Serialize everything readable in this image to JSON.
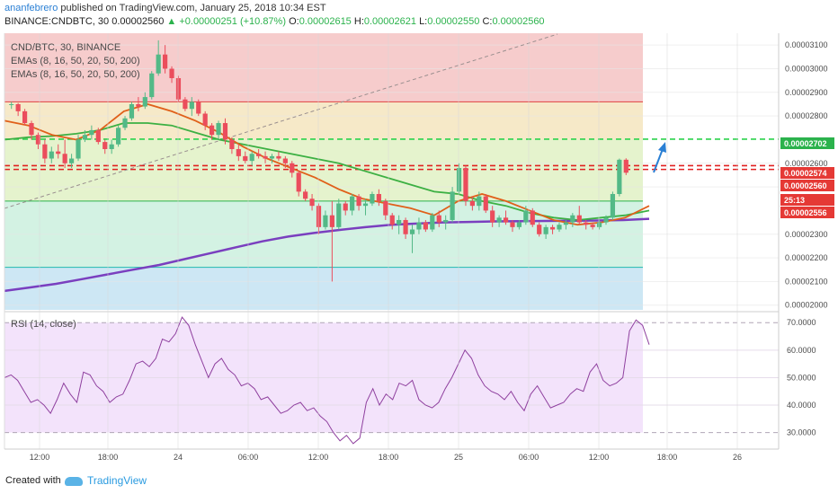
{
  "header": {
    "author": "ananfebrero",
    "published": "published on TradingView.com, January 25, 2018 10:34 EST",
    "symbol": "BINANCE:CNDBTC, 30",
    "last": "0.00002560",
    "change": "+0.00000251 (+10.87%)",
    "o_label": "O:",
    "o": "0.00002615",
    "h_label": "H:",
    "h": "0.00002621",
    "l_label": "L:",
    "l": "0.00002550",
    "c_label": "C:",
    "c": "0.00002560"
  },
  "legend": {
    "title": "CND/BTC, 30, BINANCE",
    "ema1": "EMAs (8, 16, 50, 20, 50, 200)",
    "ema2": "EMAs (8, 16, 50, 20, 50, 200)",
    "rsi": "RSI (14, close)"
  },
  "price_tags": [
    {
      "value": "0.00002702",
      "color": "#2bb24c"
    },
    {
      "value": "0.00002574",
      "color": "#e53935"
    },
    {
      "value": "0.00002560",
      "color": "#e53935"
    },
    {
      "value": "25:13",
      "color": "#e53935"
    },
    {
      "value": "0.00002556",
      "color": "#e53935"
    }
  ],
  "footer": {
    "created": "Created with",
    "brand": "TradingView"
  },
  "chart_data": [
    {
      "type": "candlestick",
      "title": "CND/BTC, 30, BINANCE",
      "ylim": [
        1.98e-05,
        3.15e-05
      ],
      "y_ticks": [
        "0.00003100",
        "0.00003000",
        "0.00002900",
        "0.00002800",
        "0.00002600",
        "0.00002500",
        "0.00002300",
        "0.00002200",
        "0.00002100",
        "0.00002000"
      ],
      "x_ticks": [
        "12:00",
        "18:00",
        "24",
        "06:00",
        "12:00",
        "18:00",
        "25",
        "06:00",
        "12:00",
        "18:00",
        "26"
      ],
      "zones": [
        {
          "from": 2.86e-05,
          "to": 3.15e-05,
          "color": "#f6cccc"
        },
        {
          "from": 2.7e-05,
          "to": 2.86e-05,
          "color": "#f6e9c8"
        },
        {
          "from": 2.44e-05,
          "to": 2.7e-05,
          "color": "#e5f3cd"
        },
        {
          "from": 2.16e-05,
          "to": 2.44e-05,
          "color": "#d3f2e3"
        },
        {
          "from": 1.98e-05,
          "to": 2.16e-05,
          "color": "#cde7f4"
        }
      ],
      "levels": [
        {
          "value": 2.86e-05,
          "style": "solid",
          "color": "#e04040"
        },
        {
          "value": 2.702e-05,
          "style": "dashed",
          "color": "#2bd24c"
        },
        {
          "value": 2.59e-05,
          "style": "dashed",
          "color": "#e02020"
        },
        {
          "value": 2.574e-05,
          "style": "dashed",
          "color": "#e02020"
        },
        {
          "value": 2.44e-05,
          "style": "solid",
          "color": "#2bb24c"
        },
        {
          "value": 2.16e-05,
          "style": "solid",
          "color": "#22b8b0"
        }
      ],
      "candles": [
        [
          2850,
          2860,
          2830,
          2850
        ],
        [
          2850,
          2855,
          2800,
          2820
        ],
        [
          2820,
          2830,
          2760,
          2770
        ],
        [
          2770,
          2780,
          2700,
          2720
        ],
        [
          2720,
          2730,
          2660,
          2680
        ],
        [
          2680,
          2700,
          2600,
          2620
        ],
        [
          2620,
          2670,
          2600,
          2650
        ],
        [
          2650,
          2680,
          2620,
          2640
        ],
        [
          2640,
          2700,
          2580,
          2600
        ],
        [
          2600,
          2640,
          2580,
          2620
        ],
        [
          2620,
          2720,
          2610,
          2700
        ],
        [
          2700,
          2740,
          2690,
          2720
        ],
        [
          2720,
          2760,
          2700,
          2740
        ],
        [
          2740,
          2750,
          2680,
          2690
        ],
        [
          2690,
          2700,
          2640,
          2660
        ],
        [
          2660,
          2700,
          2640,
          2680
        ],
        [
          2680,
          2760,
          2670,
          2750
        ],
        [
          2750,
          2800,
          2740,
          2790
        ],
        [
          2790,
          2860,
          2780,
          2850
        ],
        [
          2850,
          2880,
          2820,
          2840
        ],
        [
          2840,
          2900,
          2830,
          2880
        ],
        [
          2880,
          2990,
          2870,
          2980
        ],
        [
          2980,
          3120,
          2970,
          3060
        ],
        [
          3060,
          3100,
          2980,
          3000
        ],
        [
          3000,
          3010,
          2940,
          2960
        ],
        [
          2960,
          2970,
          2860,
          2870
        ],
        [
          2870,
          2880,
          2820,
          2830
        ],
        [
          2830,
          2880,
          2800,
          2860
        ],
        [
          2860,
          2870,
          2800,
          2810
        ],
        [
          2810,
          2820,
          2740,
          2760
        ],
        [
          2760,
          2770,
          2700,
          2720
        ],
        [
          2720,
          2780,
          2700,
          2770
        ],
        [
          2770,
          2790,
          2680,
          2700
        ],
        [
          2700,
          2710,
          2640,
          2660
        ],
        [
          2660,
          2680,
          2610,
          2630
        ],
        [
          2630,
          2650,
          2600,
          2610
        ],
        [
          2610,
          2650,
          2590,
          2640
        ],
        [
          2640,
          2660,
          2620,
          2630
        ],
        [
          2630,
          2650,
          2600,
          2620
        ],
        [
          2620,
          2640,
          2600,
          2630
        ],
        [
          2630,
          2650,
          2610,
          2620
        ],
        [
          2620,
          2630,
          2580,
          2600
        ],
        [
          2600,
          2610,
          2540,
          2560
        ],
        [
          2560,
          2570,
          2460,
          2480
        ],
        [
          2480,
          2490,
          2440,
          2450
        ],
        [
          2450,
          2470,
          2400,
          2420
        ],
        [
          2420,
          2430,
          2300,
          2330
        ],
        [
          2330,
          2400,
          2320,
          2380
        ],
        [
          2380,
          2440,
          2100,
          2330
        ],
        [
          2330,
          2450,
          2320,
          2430
        ],
        [
          2430,
          2440,
          2380,
          2400
        ],
        [
          2400,
          2470,
          2380,
          2460
        ],
        [
          2460,
          2470,
          2400,
          2420
        ],
        [
          2420,
          2450,
          2380,
          2430
        ],
        [
          2430,
          2480,
          2420,
          2470
        ],
        [
          2470,
          2490,
          2420,
          2440
        ],
        [
          2440,
          2450,
          2360,
          2380
        ],
        [
          2380,
          2390,
          2320,
          2340
        ],
        [
          2340,
          2380,
          2300,
          2360
        ],
        [
          2360,
          2370,
          2280,
          2300
        ],
        [
          2300,
          2340,
          2220,
          2320
        ],
        [
          2320,
          2370,
          2300,
          2350
        ],
        [
          2350,
          2360,
          2310,
          2320
        ],
        [
          2320,
          2390,
          2310,
          2380
        ],
        [
          2380,
          2400,
          2330,
          2350
        ],
        [
          2350,
          2380,
          2320,
          2360
        ],
        [
          2360,
          2500,
          2350,
          2480
        ],
        [
          2480,
          2600,
          2470,
          2580
        ],
        [
          2580,
          2590,
          2420,
          2440
        ],
        [
          2440,
          2460,
          2400,
          2420
        ],
        [
          2420,
          2480,
          2400,
          2460
        ],
        [
          2460,
          2470,
          2390,
          2400
        ],
        [
          2400,
          2420,
          2330,
          2350
        ],
        [
          2350,
          2380,
          2330,
          2370
        ],
        [
          2370,
          2400,
          2340,
          2350
        ],
        [
          2350,
          2360,
          2310,
          2330
        ],
        [
          2330,
          2360,
          2320,
          2350
        ],
        [
          2350,
          2420,
          2340,
          2400
        ],
        [
          2400,
          2410,
          2330,
          2340
        ],
        [
          2340,
          2350,
          2290,
          2300
        ],
        [
          2300,
          2340,
          2280,
          2330
        ],
        [
          2330,
          2340,
          2300,
          2320
        ],
        [
          2320,
          2350,
          2310,
          2340
        ],
        [
          2340,
          2360,
          2320,
          2350
        ],
        [
          2350,
          2390,
          2330,
          2380
        ],
        [
          2380,
          2420,
          2340,
          2350
        ],
        [
          2350,
          2360,
          2320,
          2340
        ],
        [
          2340,
          2350,
          2320,
          2330
        ],
        [
          2330,
          2360,
          2320,
          2350
        ],
        [
          2350,
          2380,
          2340,
          2370
        ],
        [
          2370,
          2480,
          2360,
          2470
        ],
        [
          2470,
          2620,
          2460,
          2615
        ],
        [
          2615,
          2621,
          2550,
          2560
        ]
      ],
      "overlays": [
        {
          "name": "EMA 200",
          "color": "#7a3fbf",
          "values": [
            2060,
            2075,
            2090,
            2110,
            2130,
            2150,
            2170,
            2195,
            2220,
            2245,
            2270,
            2290,
            2305,
            2318,
            2330,
            2340,
            2345,
            2350,
            2352,
            2354,
            2355,
            2356,
            2357,
            2358,
            2360,
            2365
          ]
        },
        {
          "name": "EMA 50",
          "color": "#3cb043",
          "values": [
            2700,
            2710,
            2715,
            2725,
            2740,
            2770,
            2770,
            2760,
            2730,
            2700,
            2680,
            2660,
            2640,
            2620,
            2600,
            2570,
            2540,
            2510,
            2480,
            2470,
            2440,
            2420,
            2390,
            2370,
            2360,
            2370,
            2380,
            2400
          ]
        },
        {
          "name": "EMA 20",
          "color": "#e0601a",
          "values": [
            2780,
            2760,
            2720,
            2700,
            2740,
            2820,
            2850,
            2820,
            2780,
            2730,
            2670,
            2620,
            2580,
            2540,
            2490,
            2450,
            2430,
            2410,
            2380,
            2440,
            2470,
            2440,
            2400,
            2360,
            2340,
            2350,
            2370,
            2420
          ]
        }
      ]
    },
    {
      "type": "line",
      "title": "RSI (14, close)",
      "ylim": [
        24,
        74
      ],
      "y_ticks": [
        "70.0000",
        "60.0000",
        "50.0000",
        "40.0000",
        "30.0000"
      ],
      "bands": [
        30,
        70
      ],
      "values": [
        50,
        51,
        49,
        45,
        41,
        42,
        40,
        37,
        42,
        48,
        44,
        41,
        52,
        51,
        47,
        45,
        41,
        43,
        44,
        49,
        55,
        56,
        54,
        57,
        64,
        63,
        66,
        72,
        69,
        62,
        56,
        50,
        55,
        57,
        53,
        51,
        47,
        48,
        46,
        42,
        43,
        40,
        37,
        38,
        40,
        41,
        38,
        39,
        36,
        34,
        30,
        27,
        29,
        26,
        28,
        41,
        46,
        40,
        44,
        42,
        48,
        47,
        49,
        42,
        40,
        39,
        41,
        46,
        50,
        55,
        60,
        57,
        51,
        47,
        45,
        44,
        42,
        45,
        41,
        38,
        44,
        47,
        43,
        39,
        40,
        41,
        44,
        46,
        45,
        52,
        55,
        49,
        47,
        48,
        50,
        67,
        71,
        69,
        62
      ],
      "color": "#8e3f9e"
    }
  ]
}
